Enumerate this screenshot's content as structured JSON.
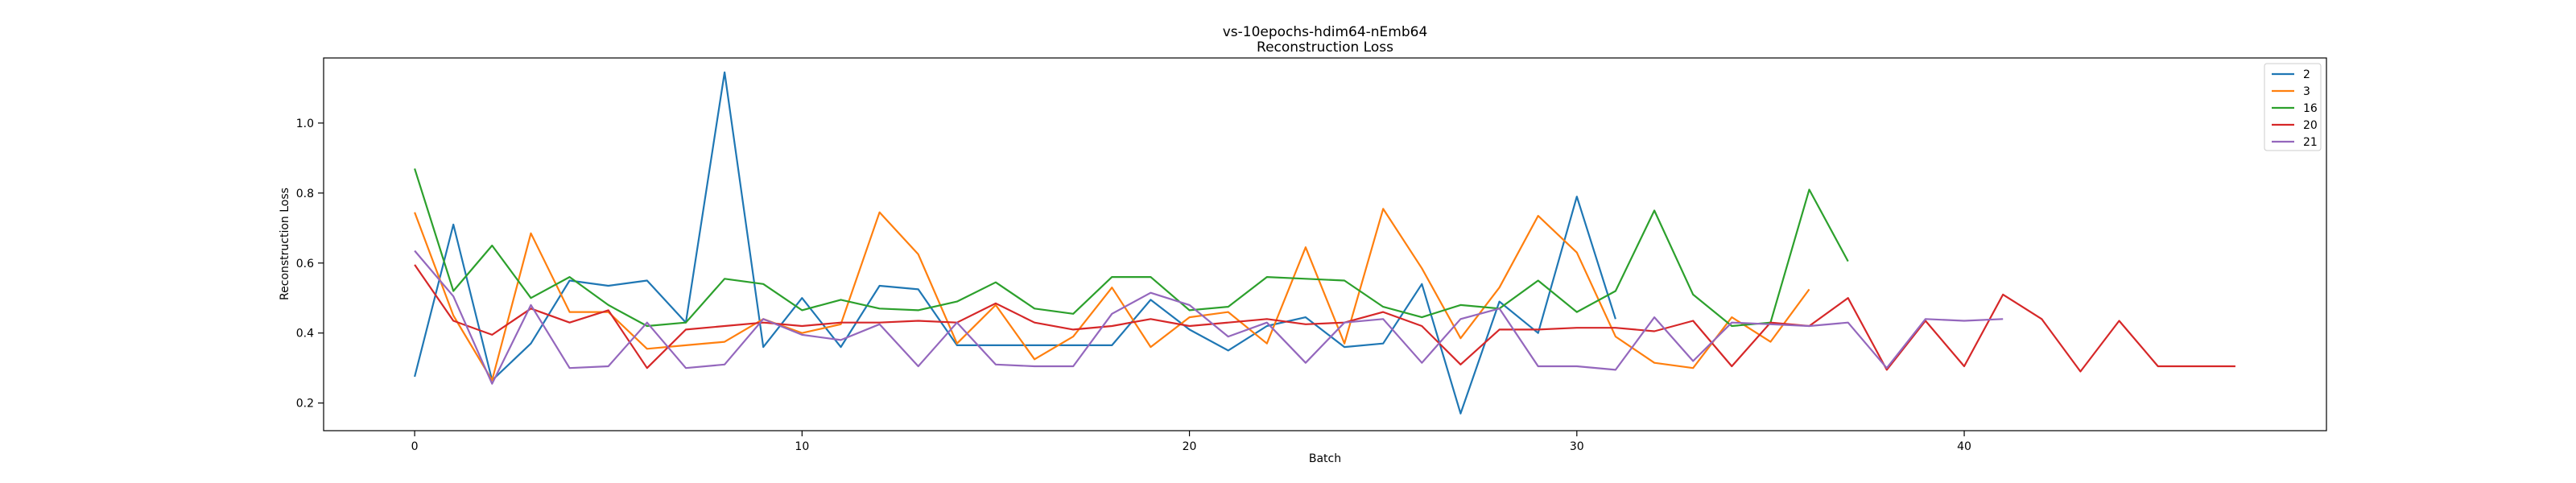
{
  "chart_data": {
    "type": "line",
    "title": "vs-10epochs-hdim64-nEmb64",
    "subtitle": "Reconstruction Loss",
    "xlabel": "Batch",
    "ylabel": "Reconstruction Loss",
    "xlim": [
      -2.35,
      49.35
    ],
    "ylim": [
      0.121,
      1.186
    ],
    "xticks": [
      0,
      10,
      20,
      30,
      40
    ],
    "yticks": [
      0.2,
      0.4,
      0.6,
      0.8,
      1.0
    ],
    "grid": false,
    "legend_position": "top-right",
    "series": [
      {
        "name": "2",
        "color": "#1f77b4",
        "values": [
          0.275,
          0.71,
          0.265,
          0.37,
          0.55,
          0.535,
          0.55,
          0.43,
          1.145,
          0.36,
          0.5,
          0.36,
          0.535,
          0.525,
          0.365,
          0.365,
          0.365,
          0.365,
          0.365,
          0.495,
          0.41,
          0.35,
          0.42,
          0.445,
          0.36,
          0.37,
          0.54,
          0.17,
          0.49,
          0.4,
          0.79,
          0.44
        ]
      },
      {
        "name": "3",
        "color": "#ff7f0e",
        "values": [
          0.745,
          0.45,
          0.265,
          0.685,
          0.46,
          0.46,
          0.355,
          0.365,
          0.375,
          0.44,
          0.4,
          0.425,
          0.745,
          0.625,
          0.37,
          0.48,
          0.325,
          0.39,
          0.53,
          0.36,
          0.445,
          0.46,
          0.37,
          0.645,
          0.37,
          0.755,
          0.585,
          0.385,
          0.53,
          0.735,
          0.63,
          0.39,
          0.315,
          0.3,
          0.445,
          0.375,
          0.525
        ]
      },
      {
        "name": "16",
        "color": "#2ca02c",
        "values": [
          0.87,
          0.52,
          0.65,
          0.5,
          0.56,
          0.48,
          0.42,
          0.43,
          0.555,
          0.54,
          0.465,
          0.495,
          0.47,
          0.465,
          0.49,
          0.545,
          0.47,
          0.455,
          0.56,
          0.56,
          0.465,
          0.475,
          0.56,
          0.555,
          0.55,
          0.475,
          0.445,
          0.48,
          0.47,
          0.55,
          0.46,
          0.52,
          0.75,
          0.51,
          0.42,
          0.43,
          0.81,
          0.605
        ]
      },
      {
        "name": "20",
        "color": "#d62728",
        "values": [
          0.595,
          0.435,
          0.395,
          0.47,
          0.43,
          0.465,
          0.3,
          0.41,
          0.42,
          0.43,
          0.42,
          0.43,
          0.43,
          0.435,
          0.43,
          0.485,
          0.43,
          0.41,
          0.42,
          0.44,
          0.42,
          0.43,
          0.44,
          0.425,
          0.43,
          0.46,
          0.42,
          0.31,
          0.41,
          0.41,
          0.415,
          0.415,
          0.405,
          0.435,
          0.305,
          0.43,
          0.42,
          0.5,
          0.295,
          0.435,
          0.305,
          0.51,
          0.44,
          0.29,
          0.435,
          0.305,
          0.305,
          0.305
        ]
      },
      {
        "name": "21",
        "color": "#9467bd",
        "values": [
          0.635,
          0.505,
          0.255,
          0.48,
          0.3,
          0.305,
          0.43,
          0.3,
          0.31,
          0.44,
          0.395,
          0.38,
          0.425,
          0.305,
          0.43,
          0.31,
          0.305,
          0.305,
          0.455,
          0.515,
          0.48,
          0.39,
          0.43,
          0.315,
          0.43,
          0.44,
          0.315,
          0.44,
          0.47,
          0.305,
          0.305,
          0.295,
          0.445,
          0.32,
          0.43,
          0.425,
          0.42,
          0.43,
          0.3,
          0.44,
          0.435,
          0.44
        ]
      }
    ]
  }
}
